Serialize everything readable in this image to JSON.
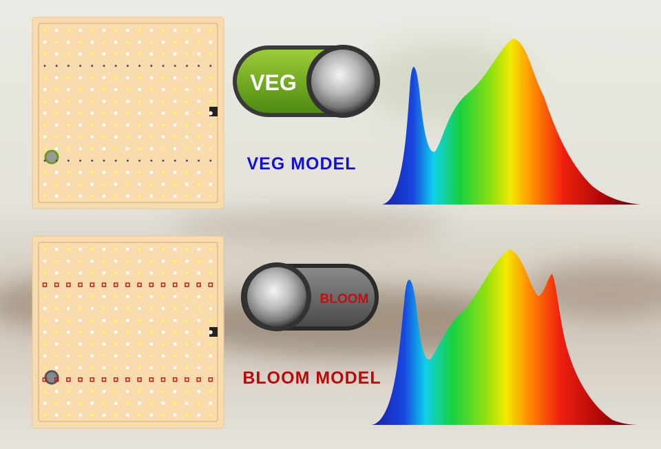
{
  "veg": {
    "switch_label": "VEG",
    "model_label": "VEG MODEL"
  },
  "bloom": {
    "switch_label": "BLOOM",
    "model_label": "BLOOM MODEL"
  }
}
